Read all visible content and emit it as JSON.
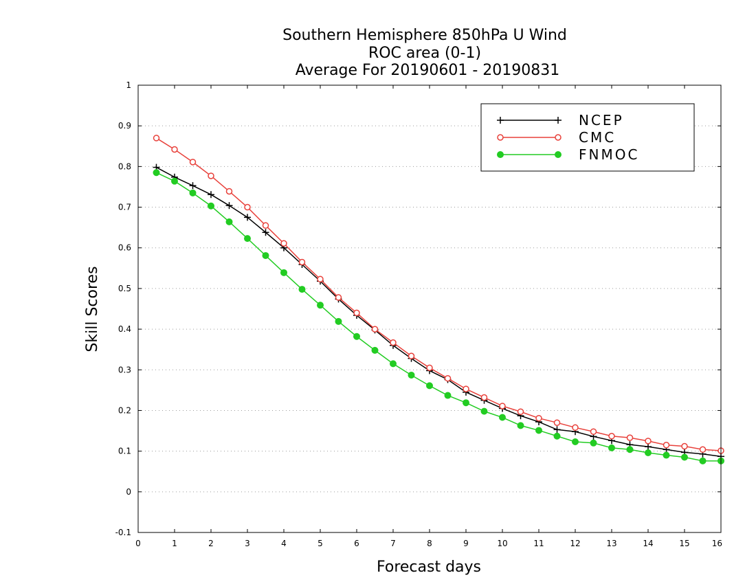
{
  "chart_data": {
    "type": "line",
    "title_lines": [
      "Southern Hemisphere 850hPa U Wind",
      "ROC area (0-1)",
      "Average For 20190601 - 20190831"
    ],
    "xlabel": "Forecast days",
    "ylabel": "Skill Scores",
    "xlim": [
      0,
      16
    ],
    "ylim": [
      -0.1,
      1
    ],
    "x_ticks": [
      0,
      1,
      2,
      3,
      4,
      5,
      6,
      7,
      8,
      9,
      10,
      11,
      12,
      13,
      14,
      15,
      16
    ],
    "x_tick_labels": [
      "0",
      "1",
      "2",
      "3",
      "4",
      "5",
      "6",
      "7",
      "8",
      "9",
      "10",
      "11",
      "12",
      "13",
      "14",
      "15",
      "16"
    ],
    "y_ticks": [
      -0.1,
      0,
      0.1,
      0.2,
      0.3,
      0.4,
      0.5,
      0.6,
      0.7,
      0.8,
      0.9,
      1
    ],
    "y_tick_labels": [
      "-0.1",
      "0",
      "0.1",
      "0.2",
      "0.3",
      "0.4",
      "0.5",
      "0.6",
      "0.7",
      "0.8",
      "0.9",
      "1"
    ],
    "grid": "horizontal dotted",
    "legend_placement": "top-right",
    "x": [
      0.5,
      1,
      1.5,
      2,
      2.5,
      3,
      3.5,
      4,
      4.5,
      5,
      5.5,
      6,
      6.5,
      7,
      7.5,
      8,
      8.5,
      9,
      9.5,
      10,
      10.5,
      11,
      11.5,
      12,
      12.5,
      13,
      13.5,
      14,
      14.5,
      15,
      15.5,
      16
    ],
    "series": [
      {
        "name": "NCEP",
        "color": "#000000",
        "marker": "plus",
        "values": [
          0.798,
          0.774,
          0.753,
          0.731,
          0.704,
          0.675,
          0.638,
          0.6,
          0.559,
          0.518,
          0.474,
          0.434,
          0.398,
          0.36,
          0.328,
          0.298,
          0.276,
          0.245,
          0.225,
          0.205,
          0.187,
          0.172,
          0.153,
          0.148,
          0.136,
          0.126,
          0.116,
          0.111,
          0.104,
          0.097,
          0.093,
          0.087
        ]
      },
      {
        "name": "CMC",
        "color": "#e8403a",
        "marker": "open-circle",
        "values": [
          0.87,
          0.842,
          0.811,
          0.777,
          0.739,
          0.7,
          0.655,
          0.611,
          0.565,
          0.523,
          0.478,
          0.44,
          0.4,
          0.367,
          0.334,
          0.305,
          0.279,
          0.253,
          0.232,
          0.211,
          0.197,
          0.181,
          0.17,
          0.158,
          0.148,
          0.137,
          0.133,
          0.125,
          0.115,
          0.112,
          0.104,
          0.101
        ]
      },
      {
        "name": "FNMOC",
        "color": "#22cc22",
        "marker": "filled-circle",
        "values": [
          0.785,
          0.764,
          0.735,
          0.703,
          0.664,
          0.623,
          0.581,
          0.539,
          0.498,
          0.459,
          0.419,
          0.382,
          0.348,
          0.315,
          0.287,
          0.261,
          0.237,
          0.219,
          0.198,
          0.183,
          0.163,
          0.151,
          0.137,
          0.123,
          0.12,
          0.108,
          0.104,
          0.096,
          0.09,
          0.085,
          0.076,
          0.076
        ]
      }
    ]
  }
}
